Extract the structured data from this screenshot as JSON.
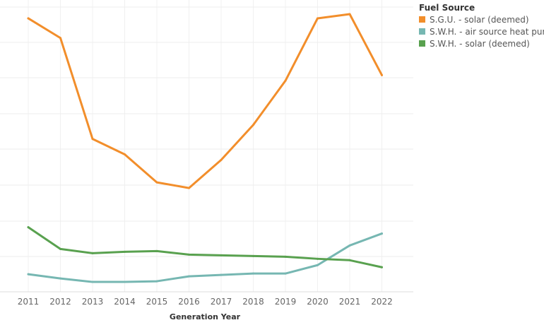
{
  "chart_data": {
    "type": "line",
    "title": "",
    "xlabel": "Generation Year",
    "ylabel": "",
    "x": [
      "2011",
      "2012",
      "2013",
      "2014",
      "2015",
      "2016",
      "2017",
      "2018",
      "2019",
      "2020",
      "2021",
      "2022"
    ],
    "ylim": [
      0,
      390
    ],
    "grid": true,
    "legend_position": "top-right",
    "legend_title": "Fuel Source",
    "series": [
      {
        "name": "S.G.U. - solar (deemed)",
        "color": "#f28e2b",
        "values": [
          384,
          356,
          212,
          190,
          150,
          142,
          182,
          232,
          295,
          384,
          390,
          303
        ]
      },
      {
        "name": "S.W.H. - air source heat pump",
        "color": "#76b7b2",
        "values": [
          19,
          13,
          8,
          8,
          9,
          16,
          18,
          20,
          20,
          32,
          60,
          77
        ]
      },
      {
        "name": "S.W.H. - solar (deemed)",
        "color": "#59a14f",
        "values": [
          86,
          55,
          49,
          51,
          52,
          47,
          46,
          45,
          44,
          41,
          39,
          29
        ]
      }
    ]
  }
}
